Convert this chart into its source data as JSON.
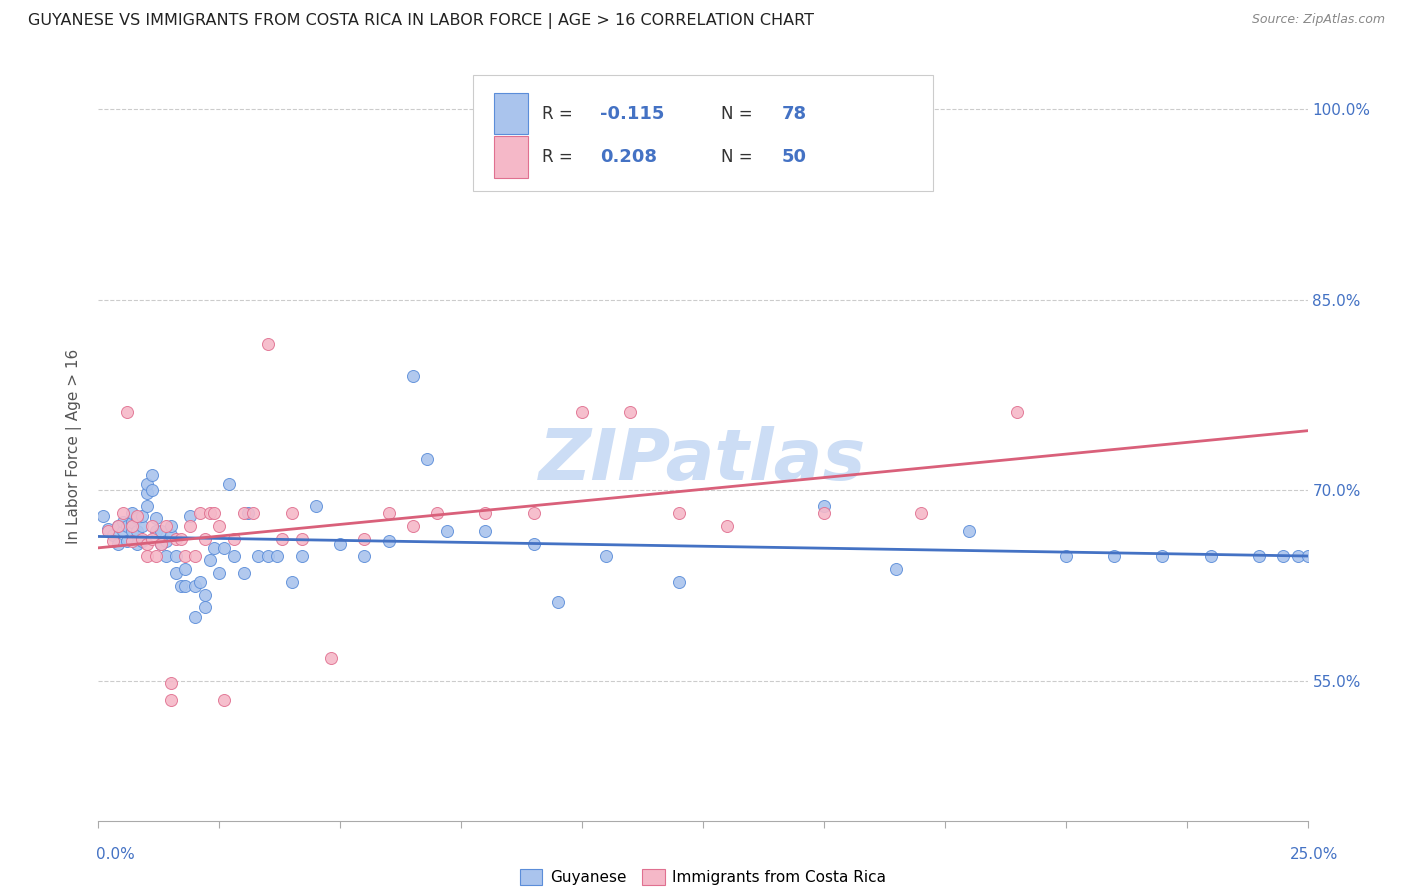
{
  "title": "GUYANESE VS IMMIGRANTS FROM COSTA RICA IN LABOR FORCE | AGE > 16 CORRELATION CHART",
  "source": "Source: ZipAtlas.com",
  "ylabel": "In Labor Force | Age > 16",
  "xlim": [
    0.0,
    0.25
  ],
  "ylim": [
    0.44,
    1.03
  ],
  "yticks": [
    0.55,
    0.7,
    0.85,
    1.0
  ],
  "ytick_labels": [
    "55.0%",
    "70.0%",
    "85.0%",
    "100.0%"
  ],
  "xticks": [
    0.0,
    0.025,
    0.05,
    0.075,
    0.1,
    0.125,
    0.15,
    0.175,
    0.2,
    0.225,
    0.25
  ],
  "blue_R": "-0.115",
  "blue_N": "78",
  "pink_R": "0.208",
  "pink_N": "50",
  "blue_fill": "#aac4ed",
  "pink_fill": "#f5b8c8",
  "blue_edge": "#5b8dd9",
  "pink_edge": "#e07090",
  "blue_line": "#4472c4",
  "pink_line": "#d9607a",
  "watermark": "ZIPatlas",
  "watermark_color": "#ccddf5",
  "legend_label_blue": "Guyanese",
  "legend_label_pink": "Immigrants from Costa Rica",
  "title_color": "#222222",
  "axis_tick_color": "#4472c4",
  "blue_scatter_x": [
    0.001,
    0.002,
    0.003,
    0.004,
    0.004,
    0.005,
    0.005,
    0.006,
    0.006,
    0.007,
    0.007,
    0.007,
    0.008,
    0.008,
    0.008,
    0.009,
    0.009,
    0.009,
    0.01,
    0.01,
    0.01,
    0.011,
    0.011,
    0.012,
    0.012,
    0.013,
    0.013,
    0.014,
    0.014,
    0.015,
    0.015,
    0.016,
    0.016,
    0.017,
    0.018,
    0.018,
    0.019,
    0.02,
    0.02,
    0.021,
    0.022,
    0.022,
    0.023,
    0.024,
    0.025,
    0.026,
    0.027,
    0.028,
    0.03,
    0.031,
    0.033,
    0.035,
    0.037,
    0.04,
    0.042,
    0.045,
    0.05,
    0.055,
    0.06,
    0.065,
    0.068,
    0.072,
    0.08,
    0.09,
    0.095,
    0.105,
    0.12,
    0.15,
    0.165,
    0.18,
    0.2,
    0.21,
    0.22,
    0.23,
    0.24,
    0.245,
    0.248,
    0.25
  ],
  "blue_scatter_y": [
    0.68,
    0.67,
    0.665,
    0.658,
    0.672,
    0.668,
    0.675,
    0.66,
    0.672,
    0.668,
    0.675,
    0.682,
    0.658,
    0.668,
    0.678,
    0.66,
    0.672,
    0.68,
    0.688,
    0.698,
    0.705,
    0.7,
    0.712,
    0.668,
    0.678,
    0.658,
    0.668,
    0.648,
    0.66,
    0.665,
    0.672,
    0.635,
    0.648,
    0.625,
    0.625,
    0.638,
    0.68,
    0.6,
    0.625,
    0.628,
    0.608,
    0.618,
    0.645,
    0.655,
    0.635,
    0.655,
    0.705,
    0.648,
    0.635,
    0.682,
    0.648,
    0.648,
    0.648,
    0.628,
    0.648,
    0.688,
    0.658,
    0.648,
    0.66,
    0.79,
    0.725,
    0.668,
    0.668,
    0.658,
    0.612,
    0.648,
    0.628,
    0.688,
    0.638,
    0.668,
    0.648,
    0.648,
    0.648,
    0.648,
    0.648,
    0.648,
    0.648,
    0.648
  ],
  "pink_scatter_x": [
    0.002,
    0.003,
    0.004,
    0.005,
    0.006,
    0.007,
    0.007,
    0.008,
    0.009,
    0.01,
    0.01,
    0.011,
    0.011,
    0.012,
    0.013,
    0.014,
    0.015,
    0.015,
    0.016,
    0.017,
    0.018,
    0.019,
    0.02,
    0.021,
    0.022,
    0.023,
    0.024,
    0.025,
    0.026,
    0.028,
    0.03,
    0.032,
    0.035,
    0.038,
    0.04,
    0.042,
    0.048,
    0.055,
    0.06,
    0.065,
    0.07,
    0.08,
    0.09,
    0.1,
    0.11,
    0.12,
    0.13,
    0.15,
    0.17,
    0.19
  ],
  "pink_scatter_y": [
    0.668,
    0.66,
    0.672,
    0.682,
    0.762,
    0.672,
    0.66,
    0.68,
    0.662,
    0.648,
    0.658,
    0.662,
    0.672,
    0.648,
    0.658,
    0.672,
    0.535,
    0.548,
    0.662,
    0.662,
    0.648,
    0.672,
    0.648,
    0.682,
    0.662,
    0.682,
    0.682,
    0.672,
    0.535,
    0.662,
    0.682,
    0.682,
    0.815,
    0.662,
    0.682,
    0.662,
    0.568,
    0.662,
    0.682,
    0.672,
    0.682,
    0.682,
    0.682,
    0.762,
    0.762,
    0.682,
    0.672,
    0.682,
    0.682,
    0.762
  ]
}
